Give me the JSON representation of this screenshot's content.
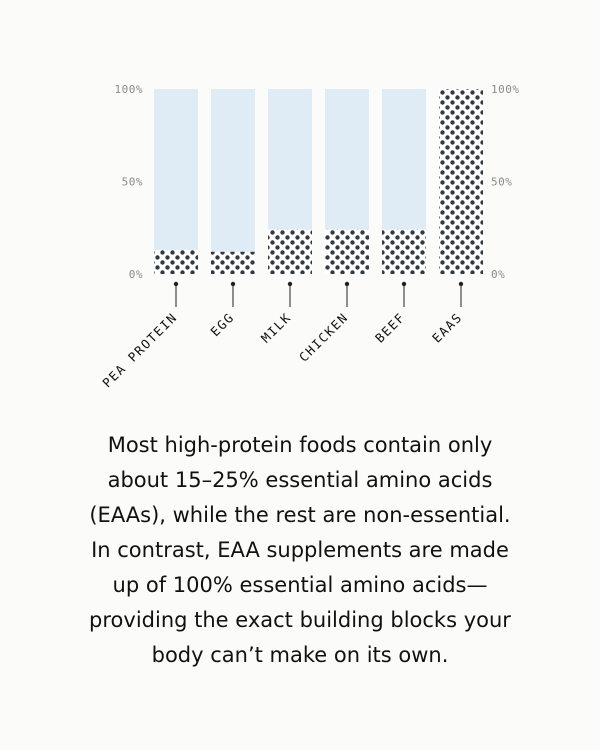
{
  "chart_data": {
    "type": "bar",
    "categories": [
      "PEA PROTEIN",
      "EGG",
      "MILK",
      "CHICKEN",
      "BEEF",
      "EAAS"
    ],
    "values": [
      13,
      12,
      24,
      24,
      24,
      100
    ],
    "ylim": [
      0,
      100
    ],
    "y_ticks_left": [
      "100%",
      "50%",
      "0%"
    ],
    "y_ticks_right": [
      "100%",
      "50%",
      "0%"
    ],
    "y_tick_values": [
      100,
      50,
      0
    ],
    "colors": {
      "background_bar": "#e0ecf5",
      "dot": "#323a40",
      "dot_bg": "#ffffff",
      "tick_text": "#8a8a8a"
    },
    "grid": false,
    "legend": "none"
  },
  "caption": {
    "lines": [
      "Most high-protein foods contain only",
      "about 15–25% essential amino acids",
      "(EAAs), while the rest are non-essential.",
      "In contrast, EAA supplements are made",
      "up of 100% essential amino acids—",
      "providing the exact building blocks your",
      "body can’t make on its own."
    ]
  }
}
